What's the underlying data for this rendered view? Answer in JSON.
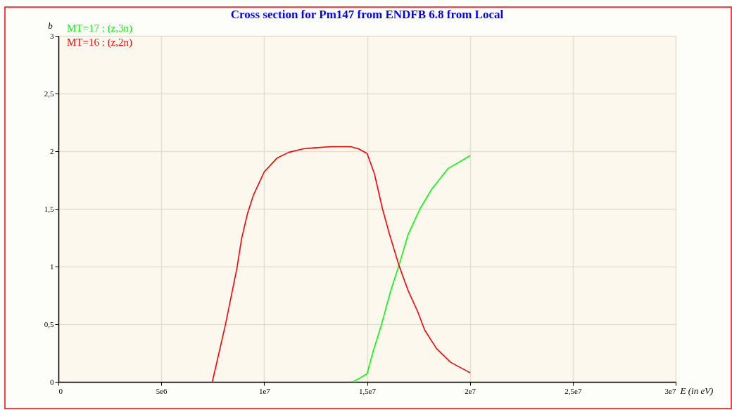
{
  "chart_data": {
    "type": "line",
    "title": "Cross section for Pm147 from ENDFB 6.8 from Local",
    "xlabel": "E (in eV)",
    "ylabel": "b",
    "xlim": [
      0,
      30000000
    ],
    "ylim": [
      0,
      3
    ],
    "xticks": [
      0,
      {
        "value": 5000000,
        "label": "5e6"
      },
      {
        "value": 10000000,
        "label": "1e7"
      },
      {
        "value": 15000000,
        "label": "1,5e7"
      },
      {
        "value": 20000000,
        "label": "2e7"
      },
      {
        "value": 25000000,
        "label": "2,5e7"
      },
      {
        "value": 30000000,
        "label": "3e7"
      }
    ],
    "yticks": [
      0,
      {
        "value": 0.5,
        "label": "0,5"
      },
      1,
      {
        "value": 1.5,
        "label": "1,5"
      },
      2,
      {
        "value": 2.5,
        "label": "2,5"
      },
      3
    ],
    "grid": true,
    "legend": "top left",
    "line_style": "solid",
    "series": [
      {
        "name": "MT=17 : (z,3n)",
        "color": "#00ff00",
        "x": [
          14320000,
          15000000,
          15290000,
          15690000,
          16150000,
          16550000,
          17000000,
          17570000,
          18140000,
          18940000,
          20000000
        ],
        "values": [
          0,
          0.07,
          0.26,
          0.49,
          0.79,
          1.01,
          1.28,
          1.5,
          1.67,
          1.85,
          1.96
        ]
      },
      {
        "name": "MT=16 : (z,2n)",
        "color": "#ff0000",
        "x": [
          7480000,
          8110000,
          8680000,
          8900000,
          9190000,
          9480000,
          10000000,
          10620000,
          11190000,
          11870000,
          12440000,
          13300000,
          14200000,
          14600000,
          15000000,
          15350000,
          15750000,
          16090000,
          16550000,
          17000000,
          17460000,
          17800000,
          18370000,
          19060000,
          20000000
        ],
        "values": [
          0,
          0.49,
          0.99,
          1.24,
          1.46,
          1.62,
          1.82,
          1.94,
          1.99,
          2.02,
          2.03,
          2.04,
          2.04,
          2.02,
          1.98,
          1.81,
          1.5,
          1.28,
          1.01,
          0.79,
          0.61,
          0.45,
          0.29,
          0.17,
          0.08
        ]
      }
    ]
  }
}
